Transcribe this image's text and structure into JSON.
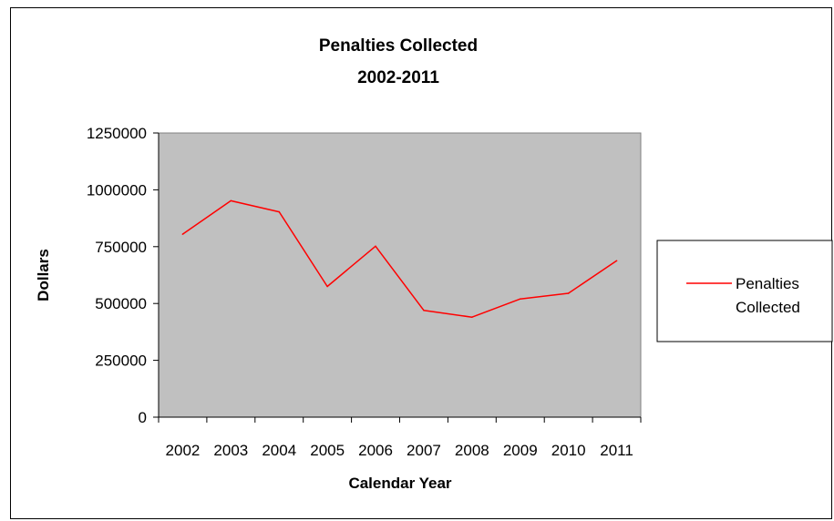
{
  "chart_data": {
    "type": "line",
    "title": "Penalties Collected",
    "subtitle": "2002-2011",
    "xlabel": "Calendar Year",
    "ylabel": "Dollars",
    "categories": [
      "2002",
      "2003",
      "2004",
      "2005",
      "2006",
      "2007",
      "2008",
      "2009",
      "2010",
      "2011"
    ],
    "ylim": [
      0,
      1250000
    ],
    "yticks": [
      "0",
      "250000",
      "500000",
      "750000",
      "1000000",
      "1250000"
    ],
    "series": [
      {
        "name": "Penalties Collected",
        "name_lines": [
          "Penalties",
          "Collected"
        ],
        "color": "#ff0000",
        "values": [
          805000,
          952000,
          903000,
          575000,
          752000,
          470000,
          440000,
          520000,
          545000,
          688000
        ]
      }
    ],
    "plot_background": "#c0c0c0",
    "grid": false,
    "legend_position": "right"
  }
}
